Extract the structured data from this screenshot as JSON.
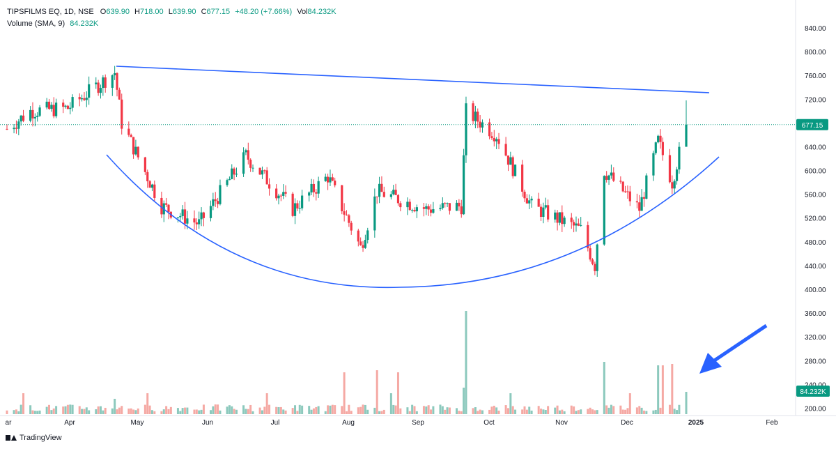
{
  "header": {
    "symbol": "TIPSFILMS EQ, 1D, NSE",
    "open_label": "O",
    "open": "639.90",
    "high_label": "H",
    "high": "718.00",
    "low_label": "L",
    "low": "639.90",
    "close_label": "C",
    "close": "677.15",
    "change": "+48.20 (+7.66%)",
    "vol_label": "Vol",
    "vol": "84.232K",
    "volume_indicator": "Volume (SMA, 9)",
    "volume_value": "84.232K"
  },
  "footer": {
    "brand": "TradingView"
  },
  "colors": {
    "up": "#089981",
    "down": "#f23645",
    "up_vol": "#8cc9bd",
    "down_vol": "#f5a9a4",
    "trendline": "#2962ff",
    "price_label_bg": "#089981",
    "vol_label_bg": "#089981"
  },
  "chart_data": {
    "type": "candlestick",
    "y_axis_ticks": [
      "840.00",
      "800.00",
      "760.00",
      "720.00",
      "680.00",
      "640.00",
      "600.00",
      "560.00",
      "520.00",
      "480.00",
      "440.00",
      "400.00",
      "360.00",
      "320.00",
      "280.00",
      "240.00",
      "200.00"
    ],
    "x_axis_ticks": [
      "ar",
      "Apr",
      "May",
      "Jun",
      "Jul",
      "Aug",
      "Sep",
      "Oct",
      "Nov",
      "Dec",
      "2025",
      "Feb"
    ],
    "last_price": "677.15",
    "last_volume": "84.232K",
    "pattern": "cup (rounding bottom) with descending resistance line",
    "series": [
      {
        "name": "price",
        "description": "daily candles Mar 2024 – Jan 2025",
        "keypoints": [
          {
            "date": "2024-03-15",
            "close": 670
          },
          {
            "date": "2024-03-25",
            "close": 700
          },
          {
            "date": "2024-04-10",
            "close": 705
          },
          {
            "date": "2024-04-30",
            "close": 765
          },
          {
            "date": "2024-05-03",
            "close": 680
          },
          {
            "date": "2024-05-20",
            "close": 540
          },
          {
            "date": "2024-06-05",
            "close": 510
          },
          {
            "date": "2024-06-25",
            "close": 625
          },
          {
            "date": "2024-07-15",
            "close": 535
          },
          {
            "date": "2024-07-30",
            "close": 590
          },
          {
            "date": "2024-08-13",
            "close": 470
          },
          {
            "date": "2024-08-20",
            "close": 565
          },
          {
            "date": "2024-09-10",
            "close": 535
          },
          {
            "date": "2024-09-25",
            "close": 540
          },
          {
            "date": "2024-09-27",
            "close": 700
          },
          {
            "date": "2024-10-10",
            "close": 660
          },
          {
            "date": "2024-10-25",
            "close": 540
          },
          {
            "date": "2024-11-15",
            "close": 500
          },
          {
            "date": "2024-11-21",
            "close": 440
          },
          {
            "date": "2024-11-25",
            "close": 600
          },
          {
            "date": "2024-12-10",
            "close": 535
          },
          {
            "date": "2024-12-18",
            "close": 650
          },
          {
            "date": "2024-12-24",
            "close": 580
          },
          {
            "date": "2024-12-30",
            "close": 677.15
          }
        ]
      }
    ]
  }
}
